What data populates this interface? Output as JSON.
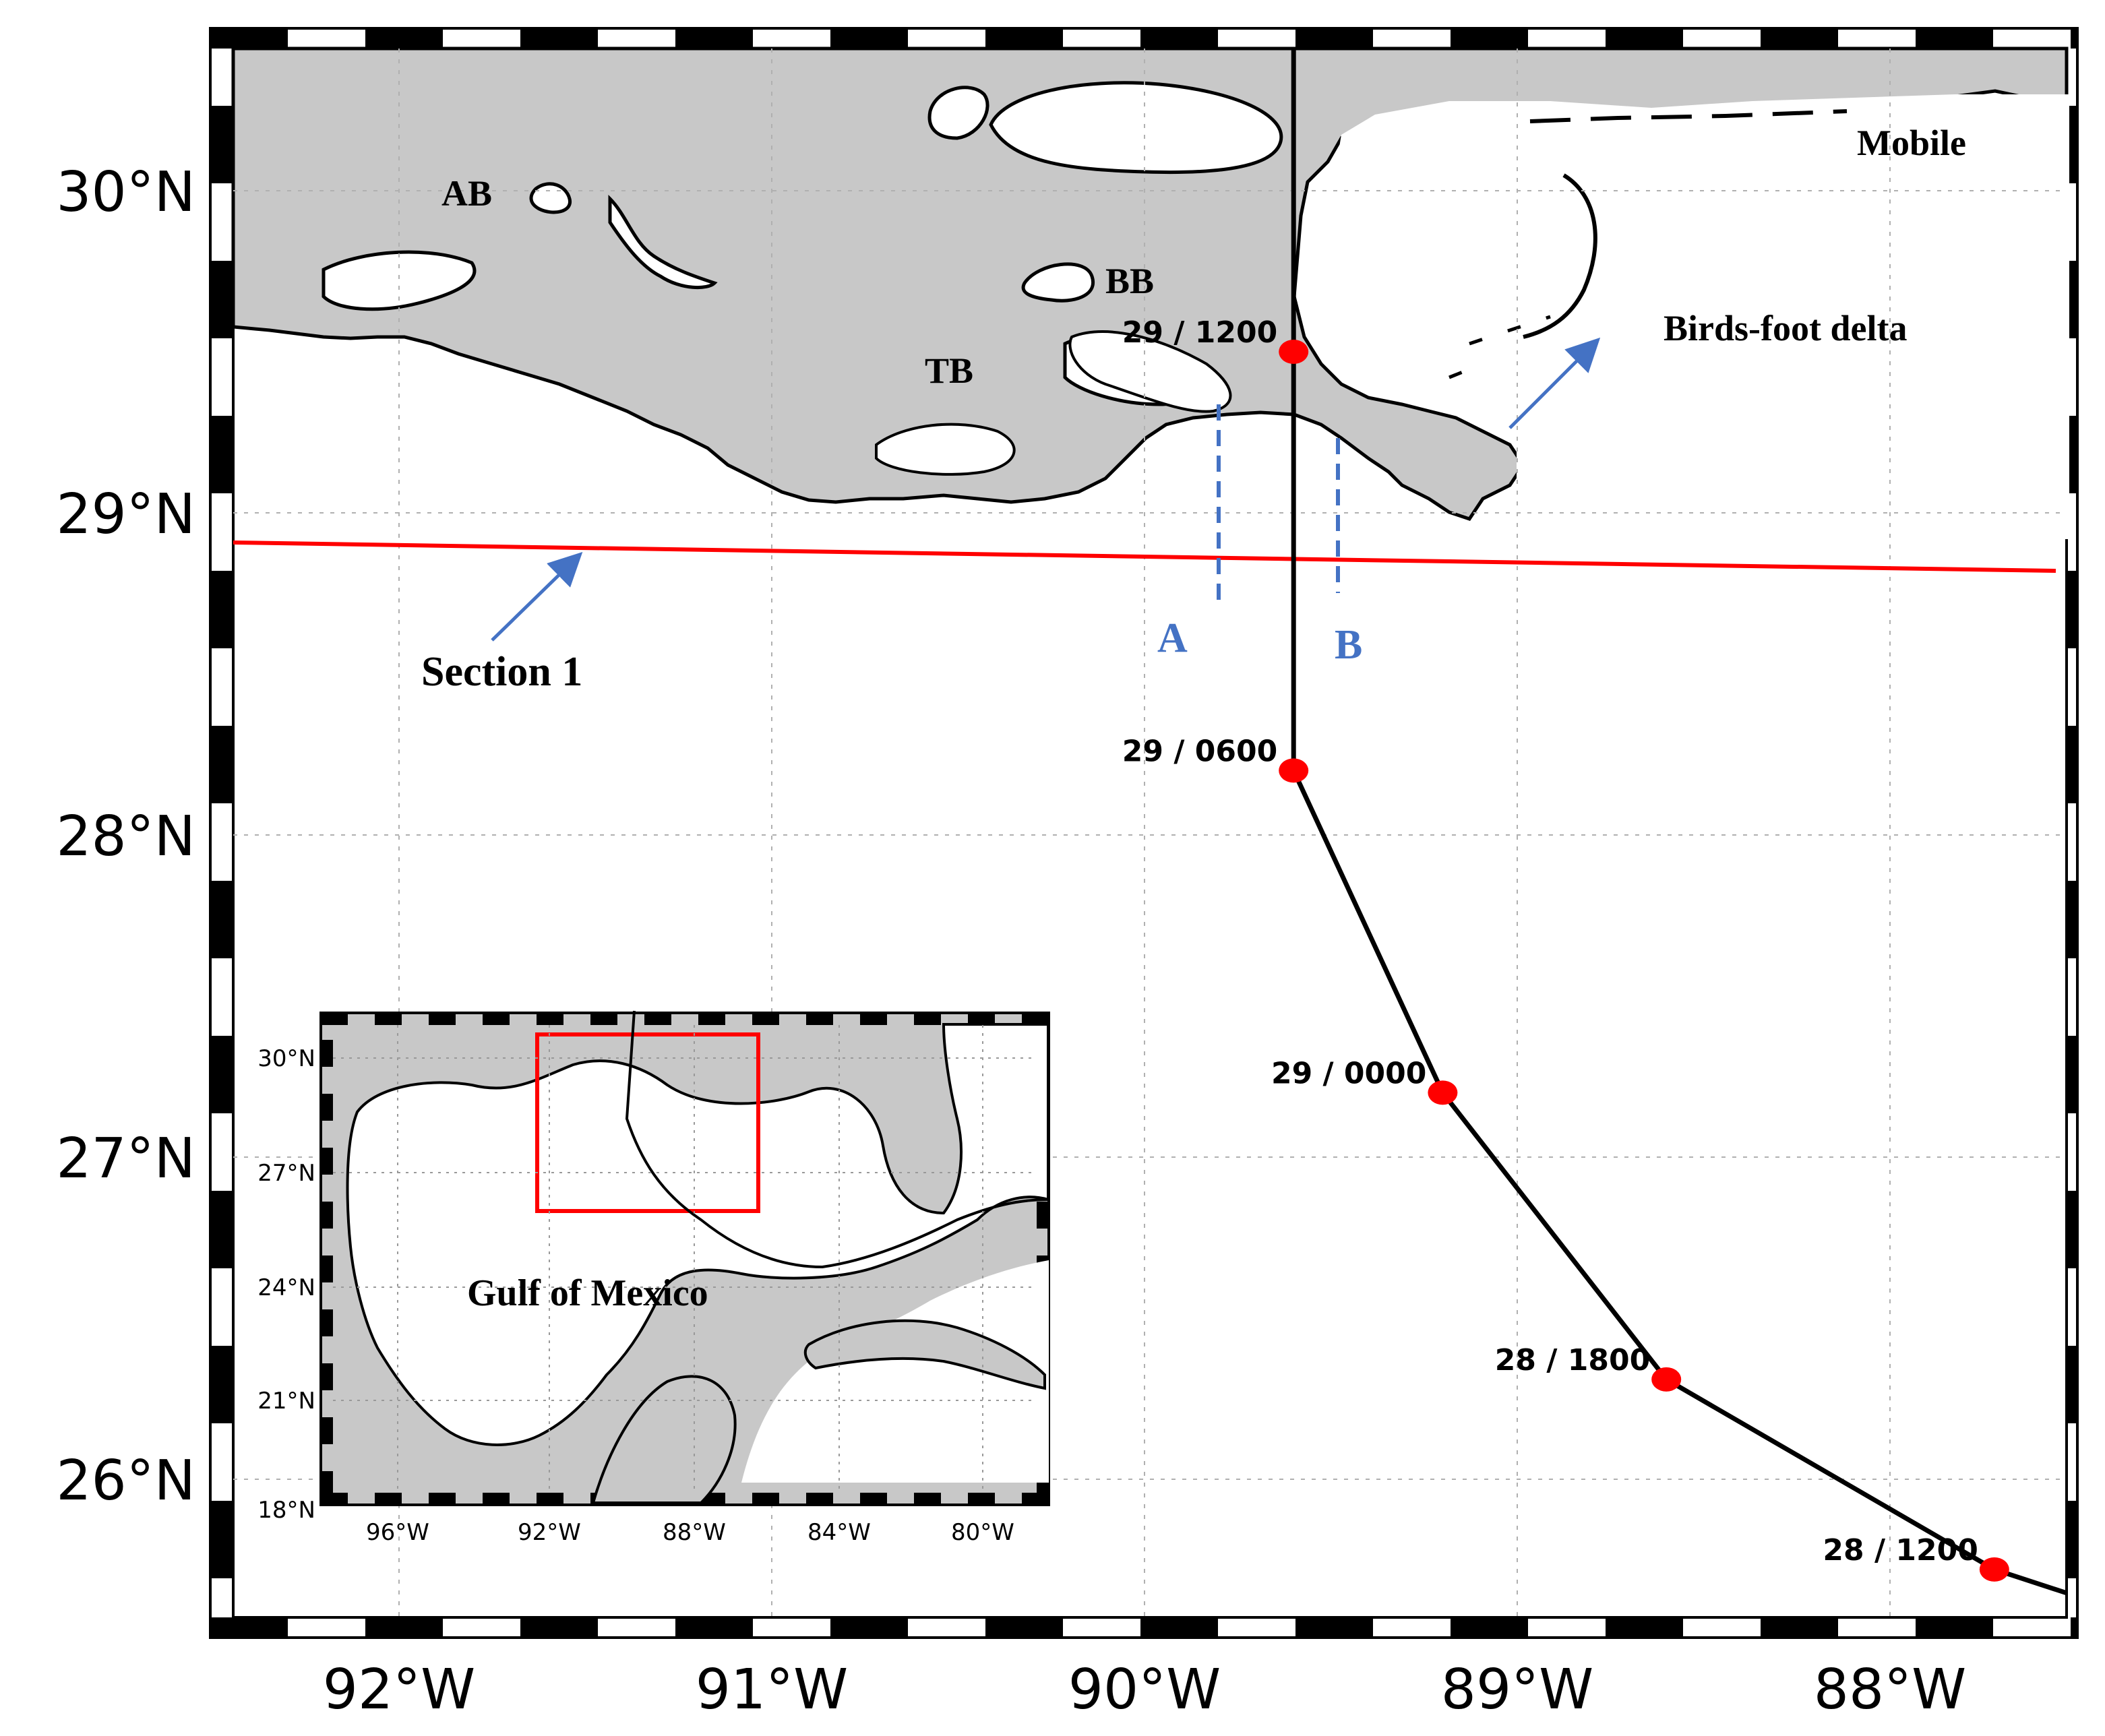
{
  "main_map": {
    "lat_ticks": [
      {
        "lat": 30,
        "label": "30°N"
      },
      {
        "lat": 29,
        "label": "29°N"
      },
      {
        "lat": 28,
        "label": "28°N"
      },
      {
        "lat": 27,
        "label": "27°N"
      },
      {
        "lat": 26,
        "label": "26°N"
      }
    ],
    "lon_ticks": [
      {
        "lon": -92,
        "label": "92°W"
      },
      {
        "lon": -91,
        "label": "91°W"
      },
      {
        "lon": -90,
        "label": "90°W"
      },
      {
        "lon": -89,
        "label": "89°W"
      },
      {
        "lon": -88,
        "label": "88°W"
      }
    ],
    "places": {
      "ab": "AB",
      "bb": "BB",
      "tb": "TB",
      "mobile": "Mobile",
      "birds_foot_delta": "Birds-foot delta",
      "section_1": "Section 1",
      "point_a": "A",
      "point_b": "B"
    },
    "track": [
      {
        "time": "28 / 1200",
        "lat": 25.72,
        "lon": -87.72
      },
      {
        "time": "28 / 1800",
        "lat": 26.31,
        "lon": -88.6
      },
      {
        "time": "29 / 0000",
        "lat": 27.2,
        "lon": -89.2
      },
      {
        "time": "29 / 0600",
        "lat": 28.2,
        "lon": -89.6
      },
      {
        "time": "29 / 1200",
        "lat": 29.5,
        "lon": -89.6
      }
    ]
  },
  "inset": {
    "title": "Gulf of Mexico",
    "lat_ticks": [
      "30°N",
      "27°N",
      "24°N",
      "21°N",
      "18°N"
    ],
    "lon_ticks": [
      "96°W",
      "92°W",
      "88°W",
      "84°W",
      "80°W"
    ]
  },
  "colors": {
    "land": "#c8c8c8",
    "track": "#000000",
    "section_line": "#ff0000",
    "track_points": "#ff0000",
    "transects": "#4472c4",
    "arrows": "#4472c4"
  }
}
